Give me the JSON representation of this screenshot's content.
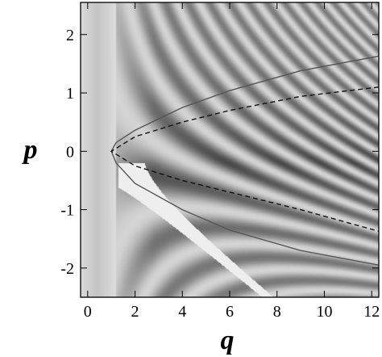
{
  "chart_data": {
    "type": "heatmap",
    "title": "",
    "xlabel": "q",
    "ylabel": "p",
    "xlim": [
      -0.3,
      12.3
    ],
    "ylim": [
      -2.5,
      2.55
    ],
    "xticks": [
      0,
      2,
      4,
      6,
      8,
      10,
      12
    ],
    "yticks": [
      -2,
      -1,
      0,
      1,
      2
    ],
    "xtick_labels": [
      "0",
      "2",
      "4",
      "6",
      "8",
      "10",
      "12"
    ],
    "ytick_labels": [
      "-2",
      "-1",
      "0",
      "1",
      "2"
    ],
    "grid": false,
    "legend": "none",
    "colormap": "grayscale",
    "colors": {
      "low": "#1e1e1e",
      "high": "#f4f4f4",
      "curve": "#555555",
      "frame": "#000000"
    },
    "curves": [
      {
        "style": "solid",
        "points": [
          [
            12.3,
            1.63
          ],
          [
            9,
            1.38
          ],
          [
            6,
            1.04
          ],
          [
            4,
            0.75
          ],
          [
            2,
            0.36
          ],
          [
            1.2,
            0.15
          ],
          [
            1.0,
            0.0
          ],
          [
            1.2,
            -0.2
          ],
          [
            2,
            -0.55
          ],
          [
            4,
            -1.0
          ],
          [
            6,
            -1.35
          ],
          [
            9,
            -1.7
          ],
          [
            12.3,
            -1.95
          ]
        ]
      },
      {
        "style": "dashed",
        "points": [
          [
            12.3,
            1.1
          ],
          [
            9,
            0.94
          ],
          [
            6,
            0.7
          ],
          [
            4,
            0.5
          ],
          [
            2,
            0.25
          ],
          [
            1.0,
            0.0
          ],
          [
            2,
            -0.25
          ],
          [
            4,
            -0.5
          ],
          [
            6,
            -0.7
          ],
          [
            9,
            -1.0
          ],
          [
            12.3,
            -1.37
          ]
        ]
      }
    ]
  }
}
